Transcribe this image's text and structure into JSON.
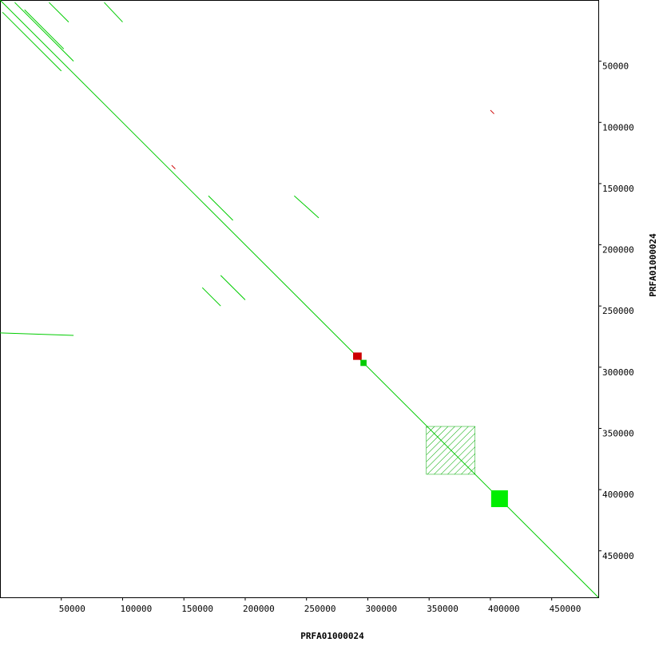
{
  "chart_data": {
    "type": "dotplot",
    "x_label": "PRFA01000024",
    "y_label": "PRFA01000024",
    "xlim": [
      0,
      488000
    ],
    "ylim": [
      0,
      488000
    ],
    "xticks": [
      50000,
      100000,
      150000,
      200000,
      250000,
      300000,
      350000,
      400000,
      450000
    ],
    "yticks": [
      50000,
      100000,
      150000,
      200000,
      250000,
      300000,
      350000,
      400000,
      450000
    ],
    "series": [
      {
        "color": "#00cc00",
        "segments": [
          [
            0,
            0,
            488000,
            488000
          ],
          [
            2000,
            10000,
            50000,
            58000
          ],
          [
            12000,
            2000,
            60000,
            50000
          ],
          [
            20000,
            8000,
            52000,
            40000
          ],
          [
            40000,
            2000,
            56000,
            18000
          ],
          [
            85000,
            2000,
            100000,
            18000
          ],
          [
            170000,
            160000,
            190000,
            180000
          ],
          [
            180000,
            225000,
            200000,
            245000
          ],
          [
            165000,
            235000,
            180000,
            250000
          ],
          [
            240000,
            160000,
            260000,
            178000
          ],
          [
            0,
            272000,
            60000,
            274000
          ]
        ]
      },
      {
        "color": "#cc0000",
        "segments": [
          [
            140000,
            135000,
            143000,
            138000
          ],
          [
            400000,
            90000,
            403000,
            93000
          ]
        ]
      }
    ],
    "blocks": [
      {
        "x": [
          288000,
          295000
        ],
        "y": [
          288000,
          294000
        ],
        "color": "#cc0000",
        "fill": "solid"
      },
      {
        "x": [
          294000,
          299000
        ],
        "y": [
          294000,
          299000
        ],
        "color": "#00cc00",
        "fill": "solid"
      },
      {
        "x": [
          400600,
          414300
        ],
        "y": [
          400600,
          414300
        ],
        "color": "#00ee00",
        "fill": "solid"
      },
      {
        "x": [
          347700,
          387500
        ],
        "y": [
          348400,
          387500
        ],
        "color": "#00aa00",
        "fill": "hatch"
      }
    ]
  }
}
